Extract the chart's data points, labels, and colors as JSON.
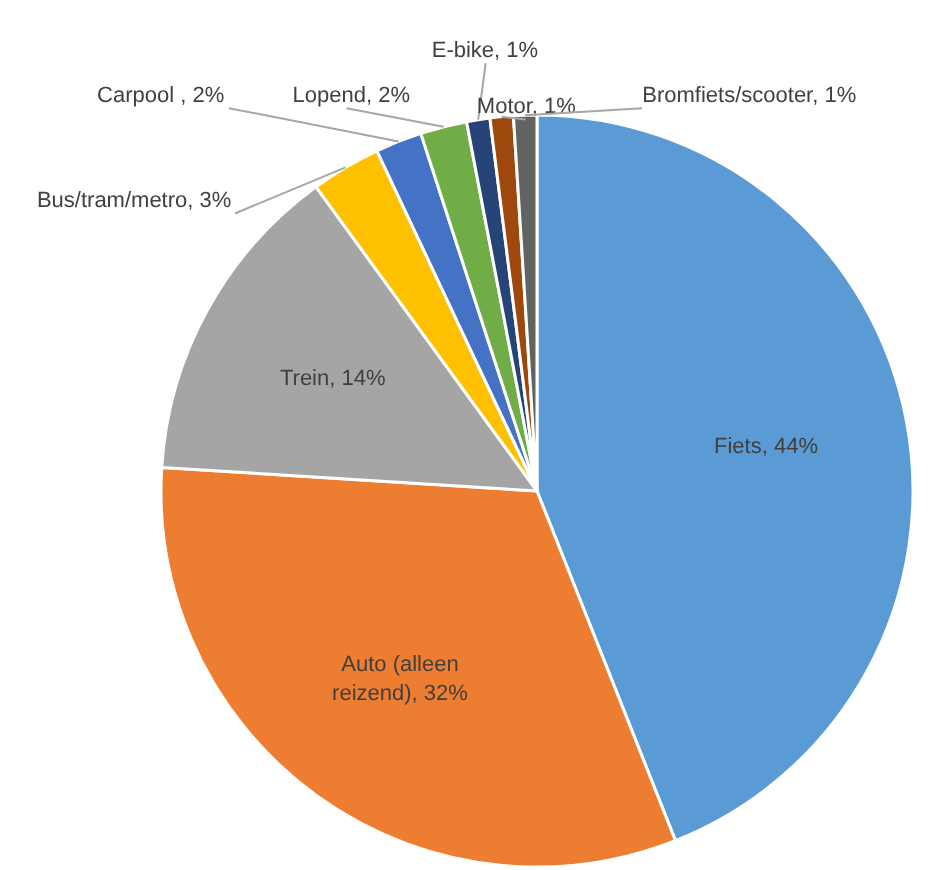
{
  "chart_data": {
    "type": "pie",
    "categories": [
      "Fiets",
      "Auto (alleen reizend)",
      "Trein",
      "Bus/tram/metro",
      "Carpool ",
      "Lopend",
      "E-bike",
      "Motor",
      "Bromfiets/scooter"
    ],
    "values": [
      44,
      32,
      14,
      3,
      2,
      2,
      1,
      1,
      1
    ],
    "colors": [
      "#5b9bd5",
      "#ed7d31",
      "#a5a5a5",
      "#ffc000",
      "#4472c4",
      "#70ad47",
      "#264478",
      "#9e480e",
      "#636363"
    ],
    "value_labels": [
      "44%",
      "32%",
      "14%",
      "3%",
      "2%",
      "2%",
      "1%",
      "1%",
      "1%"
    ]
  }
}
